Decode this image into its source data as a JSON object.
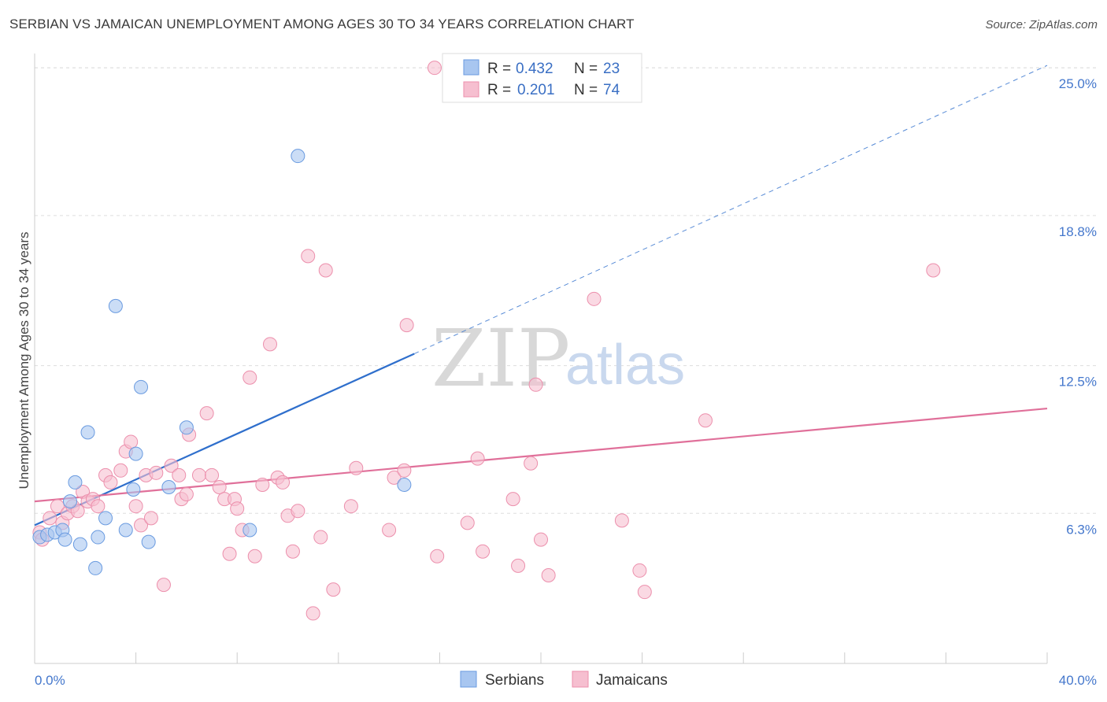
{
  "header": {
    "title": "SERBIAN VS JAMAICAN UNEMPLOYMENT AMONG AGES 30 TO 34 YEARS CORRELATION CHART",
    "source": "Source: ZipAtlas.com"
  },
  "watermark": {
    "zip": "ZIP",
    "atlas": "atlas"
  },
  "legend": {
    "serbians": {
      "r_label": "R =",
      "r_value": "0.432",
      "n_label": "N =",
      "n_value": "23"
    },
    "jamaicans": {
      "r_label": "R =",
      "r_value": "0.201",
      "n_label": "N =",
      "n_value": "74"
    }
  },
  "bottom_legend": {
    "serbians": "Serbians",
    "jamaicans": "Jamaicans"
  },
  "colors": {
    "serbian_fill": "#a8c6f0",
    "serbian_stroke": "#6a9be0",
    "serbian_line": "#2f6fcc",
    "jamaican_fill": "#f6bfd0",
    "jamaican_stroke": "#ec8fac",
    "jamaican_line": "#e0709a",
    "grid": "#dddddd",
    "axis_text": "#4477cc"
  },
  "chart_data": {
    "type": "scatter",
    "title": "SERBIAN VS JAMAICAN UNEMPLOYMENT AMONG AGES 30 TO 34 YEARS CORRELATION CHART",
    "xlabel": "",
    "ylabel": "Unemployment Among Ages 30 to 34 years",
    "xlim": [
      0,
      40
    ],
    "ylim": [
      0,
      25.6
    ],
    "x_tick_labels": [
      "0.0%",
      "40.0%"
    ],
    "y_ticks": [
      6.3,
      12.5,
      18.8,
      25.0
    ],
    "y_tick_labels": [
      "6.3%",
      "12.5%",
      "18.8%",
      "25.0%"
    ],
    "grid": true,
    "legend_position": "top-center",
    "series": [
      {
        "name": "Serbians",
        "r": 0.432,
        "n": 23,
        "points": [
          [
            0.2,
            5.3
          ],
          [
            0.5,
            5.4
          ],
          [
            0.8,
            5.5
          ],
          [
            1.1,
            5.6
          ],
          [
            1.2,
            5.2
          ],
          [
            1.4,
            6.8
          ],
          [
            1.6,
            7.6
          ],
          [
            1.8,
            5.0
          ],
          [
            2.1,
            9.7
          ],
          [
            2.4,
            4.0
          ],
          [
            2.5,
            5.3
          ],
          [
            2.8,
            6.1
          ],
          [
            3.2,
            15.0
          ],
          [
            3.6,
            5.6
          ],
          [
            3.9,
            7.3
          ],
          [
            4.0,
            8.8
          ],
          [
            4.2,
            11.6
          ],
          [
            4.5,
            5.1
          ],
          [
            5.3,
            7.4
          ],
          [
            6.0,
            9.9
          ],
          [
            8.5,
            5.6
          ],
          [
            10.4,
            21.3
          ],
          [
            14.6,
            7.5
          ]
        ],
        "trend": {
          "x_start": 0,
          "y_start": 5.8,
          "x_solid_end": 15.0,
          "y_solid_end": 13.0,
          "x_end": 40.0,
          "y_end": 25.1
        }
      },
      {
        "name": "Jamaicans",
        "r": 0.201,
        "n": 74,
        "points": [
          [
            0.2,
            5.5
          ],
          [
            0.6,
            6.1
          ],
          [
            0.9,
            6.6
          ],
          [
            1.1,
            5.9
          ],
          [
            1.3,
            6.3
          ],
          [
            1.5,
            6.6
          ],
          [
            1.7,
            6.4
          ],
          [
            1.9,
            7.2
          ],
          [
            2.1,
            6.8
          ],
          [
            2.3,
            6.9
          ],
          [
            2.5,
            6.6
          ],
          [
            2.8,
            7.9
          ],
          [
            3.0,
            7.6
          ],
          [
            3.4,
            8.1
          ],
          [
            3.6,
            8.9
          ],
          [
            3.8,
            9.3
          ],
          [
            4.0,
            6.6
          ],
          [
            4.2,
            5.8
          ],
          [
            4.4,
            7.9
          ],
          [
            4.6,
            6.1
          ],
          [
            4.8,
            8.0
          ],
          [
            5.1,
            3.3
          ],
          [
            5.4,
            8.3
          ],
          [
            5.7,
            7.9
          ],
          [
            5.8,
            6.9
          ],
          [
            6.0,
            7.1
          ],
          [
            6.1,
            9.6
          ],
          [
            6.5,
            7.9
          ],
          [
            6.8,
            10.5
          ],
          [
            7.0,
            7.9
          ],
          [
            7.3,
            7.4
          ],
          [
            7.5,
            6.9
          ],
          [
            7.7,
            4.6
          ],
          [
            7.9,
            6.9
          ],
          [
            8.0,
            6.5
          ],
          [
            8.2,
            5.6
          ],
          [
            8.5,
            12.0
          ],
          [
            8.7,
            4.5
          ],
          [
            9.0,
            7.5
          ],
          [
            9.3,
            13.4
          ],
          [
            9.6,
            7.8
          ],
          [
            9.8,
            7.6
          ],
          [
            10.0,
            6.2
          ],
          [
            10.2,
            4.7
          ],
          [
            10.4,
            6.4
          ],
          [
            10.8,
            17.1
          ],
          [
            11.0,
            2.1
          ],
          [
            11.3,
            5.3
          ],
          [
            11.5,
            16.5
          ],
          [
            11.8,
            3.1
          ],
          [
            12.5,
            6.6
          ],
          [
            12.7,
            8.2
          ],
          [
            14.0,
            5.6
          ],
          [
            14.2,
            7.8
          ],
          [
            14.6,
            8.1
          ],
          [
            14.7,
            14.2
          ],
          [
            15.8,
            25.0
          ],
          [
            15.9,
            4.5
          ],
          [
            17.1,
            5.9
          ],
          [
            17.5,
            8.6
          ],
          [
            17.7,
            4.7
          ],
          [
            18.9,
            6.9
          ],
          [
            19.1,
            4.1
          ],
          [
            19.6,
            8.4
          ],
          [
            19.8,
            11.7
          ],
          [
            20.0,
            5.2
          ],
          [
            20.3,
            3.7
          ],
          [
            22.1,
            15.3
          ],
          [
            23.2,
            6.0
          ],
          [
            23.9,
            3.9
          ],
          [
            24.1,
            3.0
          ],
          [
            26.5,
            10.2
          ],
          [
            35.5,
            16.5
          ],
          [
            0.3,
            5.2
          ]
        ],
        "trend": {
          "x_start": 0,
          "y_start": 6.8,
          "x_end": 40.0,
          "y_end": 10.7
        }
      }
    ]
  }
}
